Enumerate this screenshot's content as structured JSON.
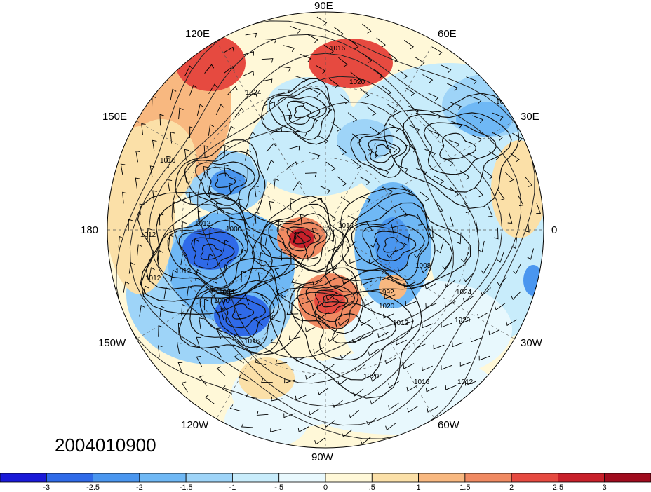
{
  "map": {
    "projection": "north-polar-stereographic",
    "field": "anomaly-shading-with-isobars-and-wind-barbs",
    "timestamp": "2004010900",
    "longitude_labels": {
      "top": "90E",
      "upper_left": "120E",
      "upper_right": "60E",
      "left_upper": "150E",
      "right_upper": "30E",
      "left": "180",
      "right": "0",
      "left_lower": "150W",
      "right_lower": "30W",
      "lower_left": "120W",
      "lower_right": "60W",
      "bottom": "90W"
    },
    "contour_labels": [
      "1016",
      "1020",
      "1024",
      "1016",
      "1012",
      "1012",
      "1000",
      "1012",
      "1012",
      "1000",
      "1004",
      "1016",
      "1020",
      "992",
      "1008",
      "1012",
      "1024",
      "1020",
      "1012",
      "1016",
      "1012",
      "1020",
      "1012"
    ]
  },
  "colorbar": {
    "ticks": [
      "-3",
      "-2.5",
      "-2",
      "-1.5",
      "-1",
      "-.5",
      "0",
      ".5",
      "1",
      "1.5",
      "2",
      "2.5",
      "3"
    ],
    "colors": [
      "#1a1ad8",
      "#2f6ae8",
      "#4a96ef",
      "#6fb8f5",
      "#9ed4f8",
      "#c8ecfb",
      "#e8f8fd",
      "#fff8d8",
      "#fbe0a8",
      "#f8b880",
      "#f08a62",
      "#e64a40",
      "#c8202a",
      "#a00c1e"
    ]
  }
}
